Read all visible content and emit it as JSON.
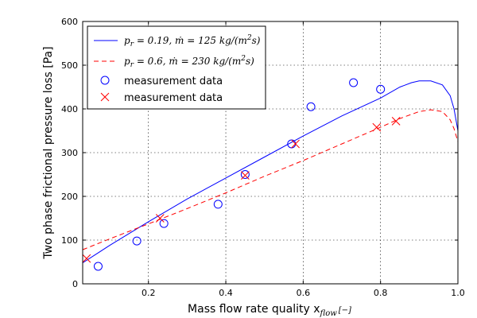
{
  "chart_data": {
    "type": "line",
    "xlabel_prefix": "Mass flow rate quality x",
    "xlabel_sub": "flow",
    "xlabel_suffix": "[−]",
    "ylabel": "Two phase frictional pressure loss [Pa]",
    "xlim": [
      0.03,
      1.0
    ],
    "ylim": [
      0,
      600
    ],
    "xticks": [
      0.2,
      0.4,
      0.6,
      0.8,
      1.0
    ],
    "xtick_labels": [
      "0.2",
      "0.4",
      "0.6",
      "0.8",
      "1.0"
    ],
    "yticks": [
      0,
      100,
      200,
      300,
      400,
      500,
      600
    ],
    "ytick_labels": [
      "0",
      "100",
      "200",
      "300",
      "400",
      "500",
      "600"
    ],
    "grid": true,
    "legend_position": "top-left",
    "series": [
      {
        "name": "p_r = 0.19, ṁ = 125 kg/(m²s)",
        "kind": "line",
        "style": "solid",
        "color": "#0000ff",
        "x": [
          0.03,
          0.1,
          0.2,
          0.3,
          0.4,
          0.5,
          0.6,
          0.7,
          0.8,
          0.85,
          0.88,
          0.9,
          0.93,
          0.96,
          0.98,
          0.99,
          1.0
        ],
        "y": [
          48,
          88,
          142,
          194,
          242,
          290,
          338,
          384,
          425,
          450,
          460,
          464,
          464,
          455,
          430,
          400,
          350
        ]
      },
      {
        "name": "p_r = 0.6, ṁ = 230 kg/(m²s)",
        "kind": "line",
        "style": "dashed",
        "color": "#ff0000",
        "x": [
          0.03,
          0.1,
          0.2,
          0.3,
          0.4,
          0.5,
          0.6,
          0.7,
          0.8,
          0.85,
          0.9,
          0.93,
          0.96,
          0.98,
          0.99,
          1.0
        ],
        "y": [
          78,
          103,
          137,
          172,
          208,
          246,
          282,
          320,
          358,
          378,
          394,
          398,
          394,
          375,
          355,
          325
        ]
      },
      {
        "name": "measurement data",
        "kind": "scatter",
        "marker": "circle",
        "color": "#0000ff",
        "x": [
          0.07,
          0.17,
          0.24,
          0.38,
          0.45,
          0.57,
          0.62,
          0.73,
          0.8
        ],
        "y": [
          40,
          98,
          138,
          182,
          250,
          320,
          405,
          460,
          445
        ]
      },
      {
        "name": "measurement data",
        "kind": "scatter",
        "marker": "x",
        "color": "#ff0000",
        "x": [
          0.04,
          0.23,
          0.45,
          0.58,
          0.79,
          0.84
        ],
        "y": [
          58,
          150,
          248,
          320,
          358,
          372
        ]
      }
    ]
  }
}
